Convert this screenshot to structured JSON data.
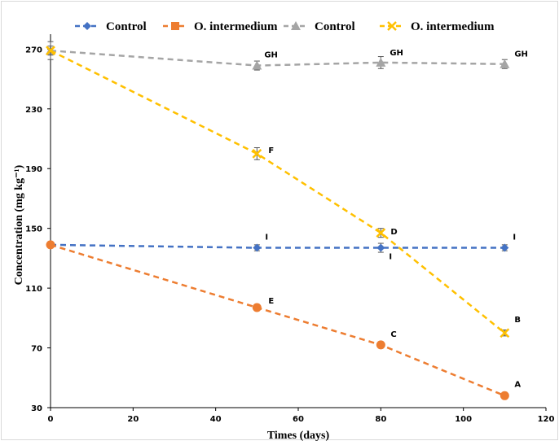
{
  "chart_data": {
    "type": "line",
    "xlabel": "Times (days)",
    "ylabel": "Concentration (mg kg⁻¹)",
    "xlim": [
      0,
      120
    ],
    "ylim": [
      30,
      280
    ],
    "xticks": [
      "0",
      "20",
      "40",
      "60",
      "80",
      "100",
      "120"
    ],
    "yticks": [
      "30",
      "70",
      "110",
      "150",
      "190",
      "230",
      "270"
    ],
    "legend_position": "top",
    "grid": false,
    "series": [
      {
        "name": "Control",
        "marker": "diamond",
        "color": "#4472C4",
        "x": [
          0,
          50,
          80,
          110
        ],
        "y": [
          139,
          137,
          137,
          137
        ],
        "err": [
          2,
          2,
          3,
          2
        ],
        "labels": [
          "",
          "I",
          "I",
          "I"
        ]
      },
      {
        "name": "O. intermedium",
        "marker": "circle",
        "color": "#ED7D31",
        "x": [
          0,
          50,
          80,
          110
        ],
        "y": [
          139,
          97,
          72,
          38
        ],
        "err": [
          2,
          2,
          2,
          1
        ],
        "labels": [
          "",
          "E",
          "C",
          "A"
        ]
      },
      {
        "name": "Control",
        "marker": "triangle",
        "color": "#A5A5A5",
        "x": [
          0,
          50,
          80,
          110
        ],
        "y": [
          269,
          259,
          261,
          260
        ],
        "err": [
          6,
          3,
          4,
          3
        ],
        "labels": [
          "",
          "GH",
          "GH",
          "GH"
        ]
      },
      {
        "name": "O. intermedium",
        "marker": "x",
        "color": "#FFC000",
        "x": [
          0,
          50,
          80,
          110
        ],
        "y": [
          269,
          200,
          147,
          80
        ],
        "err": [
          3,
          4,
          3,
          2
        ],
        "labels": [
          "",
          "F",
          "D",
          "B"
        ]
      }
    ]
  }
}
